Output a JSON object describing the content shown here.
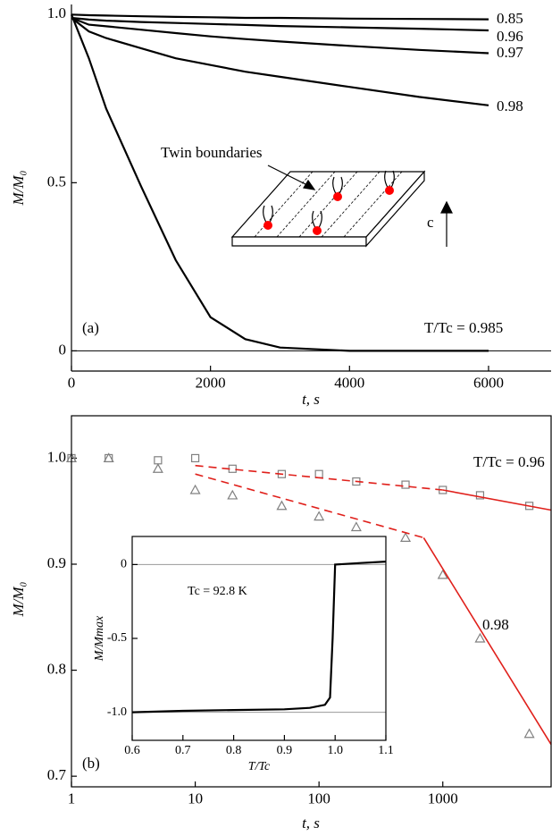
{
  "chart_data": [
    {
      "type": "line",
      "xlabel": "t, s",
      "ylabel": "M/M₀",
      "x": [
        0,
        250,
        500,
        1000,
        1500,
        2000,
        2500,
        3000,
        4000,
        5000,
        6000
      ],
      "series": [
        {
          "name": "0.85",
          "color": "#000000",
          "values": [
            1.0,
            0.998,
            0.997,
            0.995,
            0.993,
            0.992,
            0.99,
            0.99,
            0.988,
            0.987,
            0.986
          ]
        },
        {
          "name": "0.96",
          "color": "#000000",
          "values": [
            0.99,
            0.985,
            0.982,
            0.978,
            0.975,
            0.972,
            0.969,
            0.966,
            0.962,
            0.958,
            0.953
          ]
        },
        {
          "name": "0.97",
          "color": "#000000",
          "values": [
            0.99,
            0.97,
            0.965,
            0.955,
            0.945,
            0.935,
            0.927,
            0.92,
            0.907,
            0.895,
            0.885
          ]
        },
        {
          "name": "0.98",
          "color": "#000000",
          "values": [
            0.99,
            0.95,
            0.93,
            0.9,
            0.87,
            0.85,
            0.83,
            0.815,
            0.785,
            0.755,
            0.73
          ]
        },
        {
          "color": "#000000",
          "values": [
            1.0,
            0.87,
            0.72,
            0.49,
            0.27,
            0.1,
            0.035,
            0.01,
            0.0,
            0.0,
            0.0
          ]
        }
      ],
      "xlim": [
        0,
        6900
      ],
      "xticks": [
        0,
        2000,
        4000,
        6000
      ],
      "ylim": [
        -0.06,
        1.03
      ],
      "yticks": [
        {
          "value": 1,
          "label": "1.0"
        },
        0.5,
        0
      ],
      "hlines": [
        0
      ],
      "annotations": [
        "(a)",
        "T/Tc = 0.985",
        "Twin boundaries",
        "c"
      ]
    },
    {
      "type": "scatter",
      "xlabel": "t, s",
      "ylabel": "M/M₀",
      "log_x": true,
      "x": [
        1,
        2,
        5,
        10,
        20,
        50,
        100,
        200,
        500,
        1000,
        2000,
        5000
      ],
      "series": [
        {
          "name": "T/Tc = 0.96",
          "color": "#808080",
          "marker": "square",
          "values": [
            1.0,
            1.0,
            0.998,
            1.0,
            0.99,
            0.985,
            0.985,
            0.978,
            0.975,
            0.97,
            0.965,
            0.955
          ]
        },
        {
          "name": "0.98",
          "color": "#808080",
          "marker": "triangle",
          "values": [
            1.0,
            1.0,
            0.99,
            0.97,
            0.965,
            0.955,
            0.945,
            0.935,
            0.925,
            0.89,
            0.83,
            0.74
          ]
        },
        {
          "color": "#e0201b",
          "line_style": "dashed",
          "x": [
            10,
            1000
          ],
          "values": [
            0.993,
            0.97
          ]
        },
        {
          "color": "#e0201b",
          "line_style": "solid",
          "x": [
            1000,
            7500
          ],
          "values": [
            0.97,
            0.951
          ]
        },
        {
          "color": "#e0201b",
          "line_style": "dashed",
          "x": [
            10,
            700
          ],
          "values": [
            0.985,
            0.925
          ]
        },
        {
          "color": "#e0201b",
          "line_style": "solid",
          "x": [
            700,
            7500
          ],
          "values": [
            0.925,
            0.73
          ]
        }
      ],
      "xlim": [
        1,
        7500
      ],
      "xticks": [
        1,
        10,
        100,
        1000
      ],
      "ylim": [
        0.69,
        1.04
      ],
      "yticks": [
        {
          "value": 1,
          "label": "1.0"
        },
        0.9,
        0.8,
        0.7
      ],
      "annotations": [
        "(b)"
      ]
    },
    {
      "type": "line",
      "xlabel": "T/Tc",
      "ylabel": "M/Mmax",
      "x": [
        0.6,
        0.7,
        0.8,
        0.9,
        0.95,
        0.98,
        0.99,
        0.995,
        1.0,
        1.05,
        1.1
      ],
      "series": [
        {
          "color": "#000000",
          "values": [
            -1.0,
            -0.99,
            -0.985,
            -0.98,
            -0.97,
            -0.95,
            -0.9,
            -0.5,
            0.0,
            0.01,
            0.02
          ]
        }
      ],
      "xlim": [
        0.6,
        1.1
      ],
      "xticks": [
        0.6,
        0.7,
        0.8,
        0.9,
        {
          "value": 1,
          "label": "1.0"
        },
        1.1
      ],
      "ylim": [
        -1.19,
        0.19
      ],
      "yticks": [
        0,
        -0.5,
        {
          "value": -1,
          "label": "-1.0"
        }
      ],
      "hlines": [
        0,
        -1
      ],
      "annotations": [
        "Tc = 92.8 K"
      ]
    }
  ]
}
